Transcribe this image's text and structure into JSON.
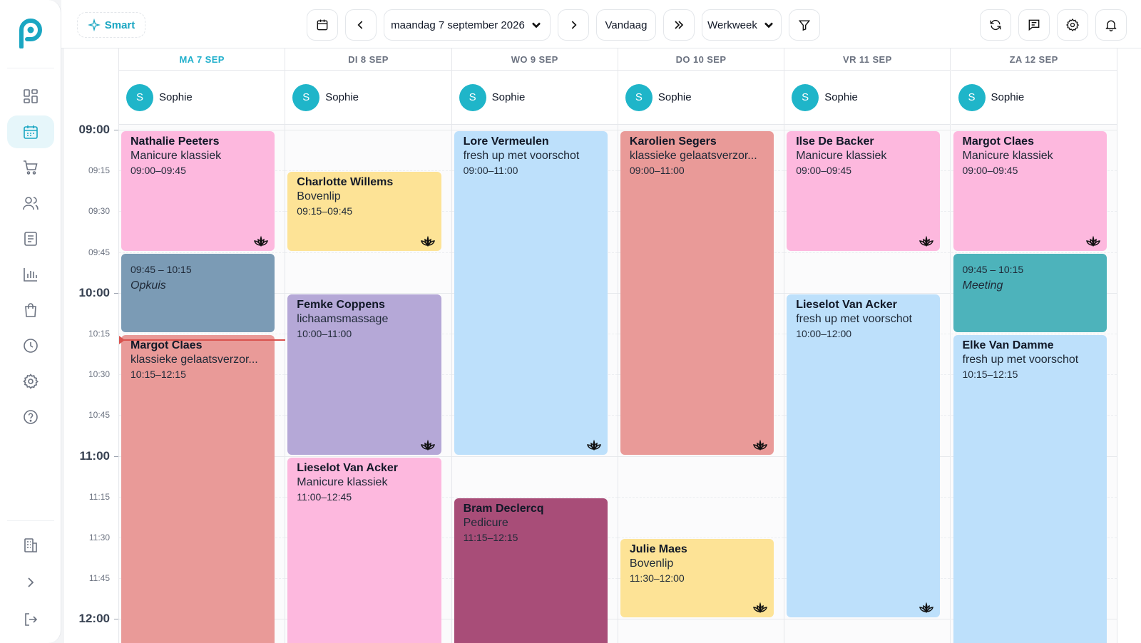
{
  "colors": {
    "brand": "#1aa6c2",
    "pink": "#fdb8de",
    "yellow": "#fde396",
    "blue": "#bde0fb",
    "salmon": "#e99a98",
    "lavender": "#b5a8d7",
    "slate": "#7b9bb5",
    "teal": "#4db3bb",
    "plum": "#a84d78",
    "now_line": "#d9534f"
  },
  "sidebar": {
    "items": [
      {
        "icon": "dashboard-icon",
        "active": false
      },
      {
        "icon": "calendar-icon",
        "active": true
      },
      {
        "icon": "cart-icon",
        "active": false
      },
      {
        "icon": "users-icon",
        "active": false
      },
      {
        "icon": "document-icon",
        "active": false
      },
      {
        "icon": "bar-chart-icon",
        "active": false
      },
      {
        "icon": "shopping-bag-icon",
        "active": false
      },
      {
        "icon": "clock-icon",
        "active": false
      },
      {
        "icon": "settings-icon",
        "active": false
      },
      {
        "icon": "help-icon",
        "active": false
      }
    ],
    "bottom_items": [
      {
        "icon": "building-icon"
      },
      {
        "icon": "expand-icon"
      },
      {
        "icon": "logout-icon"
      }
    ]
  },
  "toolbar": {
    "smart_label": "Smart",
    "date_label": "maandag 7 september 2026",
    "today_label": "Vandaag",
    "view_label": "Werkweek"
  },
  "calendar": {
    "time_labels": [
      "09:00",
      "09:15",
      "09:30",
      "09:45",
      "10:00",
      "10:15",
      "10:30",
      "10:45",
      "11:00",
      "11:15",
      "11:30",
      "11:45",
      "12:00"
    ],
    "now_time": "10:17",
    "days": [
      {
        "label": "MA 7 SEP",
        "today": true,
        "staff": "Sophie",
        "initial": "S"
      },
      {
        "label": "DI 8 SEP",
        "today": false,
        "staff": "Sophie",
        "initial": "S"
      },
      {
        "label": "WO 9 SEP",
        "today": false,
        "staff": "Sophie",
        "initial": "S"
      },
      {
        "label": "DO 10 SEP",
        "today": false,
        "staff": "Sophie",
        "initial": "S"
      },
      {
        "label": "VR 11 SEP",
        "today": false,
        "staff": "Sophie",
        "initial": "S"
      },
      {
        "label": "ZA 12 SEP",
        "today": false,
        "staff": "Sophie",
        "initial": "S"
      }
    ],
    "appointments": [
      {
        "day": 0,
        "start": "09:00",
        "end": "09:45",
        "client": "Nathalie Peeters",
        "service": "Manicure klassiek",
        "time": "09:00–09:45",
        "color": "pink",
        "lotus": true
      },
      {
        "day": 0,
        "start": "09:45",
        "end": "10:15",
        "block": true,
        "time": "09:45 – 10:15",
        "note": "Opkuis",
        "color": "slate"
      },
      {
        "day": 0,
        "start": "10:15",
        "end": "12:15",
        "client": "Margot Claes",
        "service": "klassieke gelaatsverzor...",
        "time": "10:15–12:15",
        "color": "salmon",
        "lotus": false
      },
      {
        "day": 1,
        "start": "09:15",
        "end": "09:45",
        "client": "Charlotte Willems",
        "service": "Bovenlip",
        "time": "09:15–09:45",
        "color": "yellow",
        "lotus": true
      },
      {
        "day": 1,
        "start": "10:00",
        "end": "11:00",
        "client": "Femke Coppens",
        "service": "lichaamsmassage",
        "time": "10:00–11:00",
        "color": "lavender",
        "lotus": true
      },
      {
        "day": 1,
        "start": "11:00",
        "end": "12:45",
        "client": "Lieselot Van Acker",
        "service": "Manicure klassiek",
        "time": "11:00–12:45",
        "color": "pink",
        "lotus": false
      },
      {
        "day": 2,
        "start": "09:00",
        "end": "11:00",
        "client": "Lore Vermeulen",
        "service": "fresh up met voorschot",
        "time": "09:00–11:00",
        "color": "blue",
        "lotus": true
      },
      {
        "day": 2,
        "start": "11:15",
        "end": "12:15",
        "client": "Bram Declercq",
        "service": "Pedicure",
        "time": "11:15–12:15",
        "color": "plum",
        "lotus": false
      },
      {
        "day": 3,
        "start": "09:00",
        "end": "11:00",
        "client": "Karolien Segers",
        "service": "klassieke gelaatsverzor...",
        "time": "09:00–11:00",
        "color": "salmon",
        "lotus": true
      },
      {
        "day": 3,
        "start": "11:30",
        "end": "12:00",
        "client": "Julie Maes",
        "service": "Bovenlip",
        "time": "11:30–12:00",
        "color": "yellow",
        "lotus": true
      },
      {
        "day": 4,
        "start": "09:00",
        "end": "09:45",
        "client": "Ilse De Backer",
        "service": "Manicure klassiek",
        "time": "09:00–09:45",
        "color": "pink",
        "lotus": true
      },
      {
        "day": 4,
        "start": "10:00",
        "end": "12:00",
        "client": "Lieselot Van Acker",
        "service": "fresh up met voorschot",
        "time": "10:00–12:00",
        "color": "blue",
        "lotus": true
      },
      {
        "day": 5,
        "start": "09:00",
        "end": "09:45",
        "client": "Margot Claes",
        "service": "Manicure klassiek",
        "time": "09:00–09:45",
        "color": "pink",
        "lotus": true
      },
      {
        "day": 5,
        "start": "09:45",
        "end": "10:15",
        "block": true,
        "time": "09:45 – 10:15",
        "note": "Meeting",
        "color": "teal"
      },
      {
        "day": 5,
        "start": "10:15",
        "end": "12:15",
        "client": "Elke Van Damme",
        "service": "fresh up met voorschot",
        "time": "10:15–12:15",
        "color": "blue",
        "lotus": false
      }
    ]
  }
}
